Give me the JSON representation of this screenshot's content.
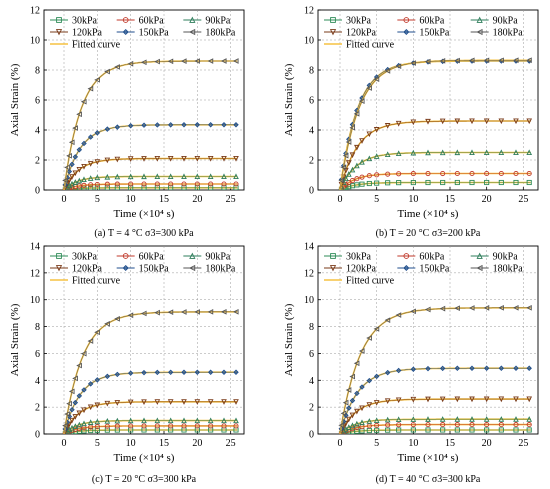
{
  "figure": {
    "series_names": [
      "30kPa",
      "60kPa",
      "90kPa",
      "120kPa",
      "150kPa",
      "180kPa"
    ],
    "fit_name": "Fitted curve",
    "colors": {
      "30kPa": "#2e8b57",
      "60kPa": "#c0392b",
      "90kPa": "#2e7d5b",
      "120kPa": "#7a3b1a",
      "150kPa": "#1f4e8c",
      "180kPa": "#555555",
      "fit": "#f5c242"
    }
  },
  "chart_data": [
    {
      "type": "line",
      "caption": "(a) T = 4 °C    σ3=300 kPa",
      "xlabel": "Time (×10⁴ s)",
      "ylabel": "Axial Strain (%)",
      "xlim": [
        -3,
        27
      ],
      "ylim": [
        0,
        12
      ],
      "xticks": [
        0,
        5,
        10,
        15,
        20,
        25
      ],
      "yticks": [
        0,
        2,
        4,
        6,
        8,
        10,
        12
      ],
      "grid": "dashed",
      "legend": "top",
      "series": [
        {
          "name": "30kPa",
          "values_final": 0.15,
          "tau": 2.0
        },
        {
          "name": "60kPa",
          "values_final": 0.4,
          "tau": 2.0
        },
        {
          "name": "90kPa",
          "values_final": 0.9,
          "tau": 2.0
        },
        {
          "name": "120kPa",
          "values_final": 2.1,
          "tau": 2.2
        },
        {
          "name": "150kPa",
          "values_final": 4.35,
          "tau": 2.4
        },
        {
          "name": "180kPa",
          "values_final": 8.6,
          "tau": 2.6
        }
      ]
    },
    {
      "type": "line",
      "caption": "(b) T = 20 °C    σ3=200 kPa",
      "xlabel": "Time (×10⁴ s)",
      "ylabel": "Axial Strain (%)",
      "xlim": [
        -3,
        27
      ],
      "ylim": [
        0,
        12
      ],
      "xticks": [
        0,
        5,
        10,
        15,
        20,
        25
      ],
      "yticks": [
        0,
        2,
        4,
        6,
        8,
        10,
        12
      ],
      "grid": "dashed",
      "legend": "top",
      "series": [
        {
          "name": "30kPa",
          "values_final": 0.5,
          "tau": 2.0
        },
        {
          "name": "60kPa",
          "values_final": 1.1,
          "tau": 2.0
        },
        {
          "name": "90kPa",
          "values_final": 2.5,
          "tau": 2.2
        },
        {
          "name": "120kPa",
          "values_final": 4.6,
          "tau": 2.4
        },
        {
          "name": "150kPa",
          "values_final": 8.6,
          "tau": 2.4
        },
        {
          "name": "180kPa",
          "values_final": 8.65,
          "tau": 2.6
        }
      ]
    },
    {
      "type": "line",
      "caption": "(c) T = 20 °C    σ3=300 kPa",
      "xlabel": "Time (×10⁴ s)",
      "ylabel": "Axial Strain (%)",
      "xlim": [
        -3,
        27
      ],
      "ylim": [
        0,
        14
      ],
      "xticks": [
        0,
        5,
        10,
        15,
        20,
        25
      ],
      "yticks": [
        0,
        2,
        4,
        6,
        8,
        10,
        12,
        14
      ],
      "grid": "dashed",
      "legend": "top",
      "series": [
        {
          "name": "30kPa",
          "values_final": 0.3,
          "tau": 2.0
        },
        {
          "name": "60kPa",
          "values_final": 0.6,
          "tau": 2.0
        },
        {
          "name": "90kPa",
          "values_final": 1.0,
          "tau": 2.0
        },
        {
          "name": "120kPa",
          "values_final": 2.4,
          "tau": 2.2
        },
        {
          "name": "150kPa",
          "values_final": 4.6,
          "tau": 2.4
        },
        {
          "name": "180kPa",
          "values_final": 9.1,
          "tau": 2.8
        }
      ]
    },
    {
      "type": "line",
      "caption": "(d) T = 40 °C    σ3=300 kPa",
      "xlabel": "Time (×10⁴ s)",
      "ylabel": "Axial Strain (%)",
      "xlim": [
        -3,
        27
      ],
      "ylim": [
        0,
        14
      ],
      "xticks": [
        0,
        5,
        10,
        15,
        20,
        25
      ],
      "yticks": [
        0,
        2,
        4,
        6,
        8,
        10,
        12,
        14
      ],
      "grid": "dashed",
      "legend": "top",
      "series": [
        {
          "name": "30kPa",
          "values_final": 0.3,
          "tau": 2.0
        },
        {
          "name": "60kPa",
          "values_final": 0.7,
          "tau": 2.0
        },
        {
          "name": "90kPa",
          "values_final": 1.1,
          "tau": 2.0
        },
        {
          "name": "120kPa",
          "values_final": 2.6,
          "tau": 2.2
        },
        {
          "name": "150kPa",
          "values_final": 4.9,
          "tau": 2.4
        },
        {
          "name": "180kPa",
          "values_final": 9.4,
          "tau": 2.8
        }
      ]
    }
  ]
}
